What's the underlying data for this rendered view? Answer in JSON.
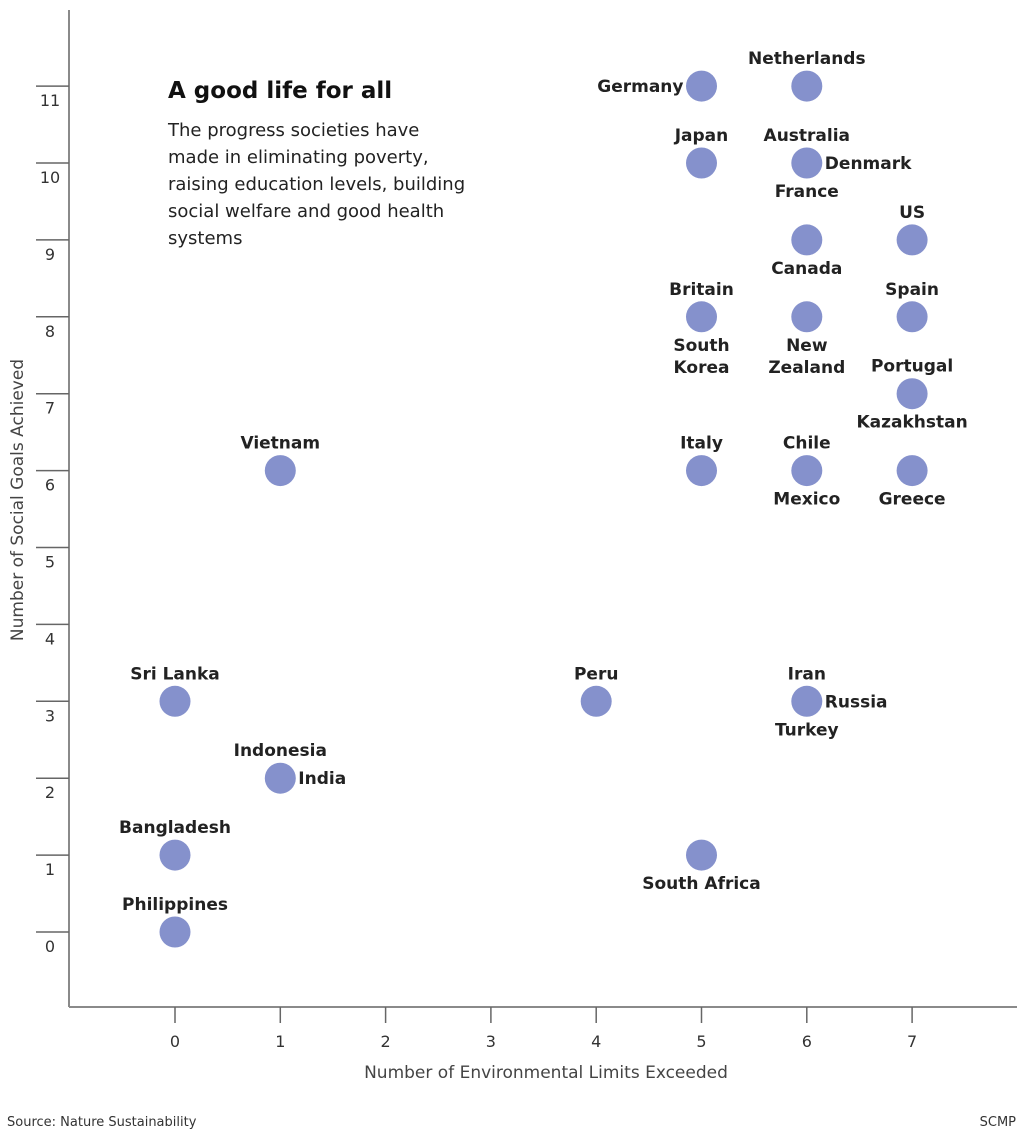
{
  "chart_data": {
    "type": "scatter",
    "title": "A good life for all",
    "subtitle": "The progress societies have made in eliminating poverty, raising education levels, building social welfare and good health systems",
    "xlabel": "Number of Environmental Limits Exceeded",
    "ylabel": "Number of Social Goals Achieved",
    "xlim": [
      -1,
      7.8
    ],
    "ylim": [
      -1,
      12
    ],
    "xticks": [
      0,
      1,
      2,
      3,
      4,
      5,
      6,
      7
    ],
    "yticks": [
      0,
      1,
      2,
      3,
      4,
      5,
      6,
      7,
      8,
      9,
      10,
      11
    ],
    "grid": false,
    "marker_color": "#8591cc",
    "points": [
      {
        "label": "Germany",
        "x": 5,
        "y": 11
      },
      {
        "label": "Netherlands",
        "x": 6,
        "y": 11
      },
      {
        "label": "Japan",
        "x": 5,
        "y": 10
      },
      {
        "label": "Australia",
        "x": 6,
        "y": 10
      },
      {
        "label": "Denmark",
        "x": 6,
        "y": 10
      },
      {
        "label": "France",
        "x": 6,
        "y": 10
      },
      {
        "label": "Canada",
        "x": 6,
        "y": 9
      },
      {
        "label": "US",
        "x": 7,
        "y": 9
      },
      {
        "label": "Britain",
        "x": 5,
        "y": 8
      },
      {
        "label": "South Korea",
        "x": 5,
        "y": 8
      },
      {
        "label": "New Zealand",
        "x": 6,
        "y": 8
      },
      {
        "label": "Spain",
        "x": 7,
        "y": 8
      },
      {
        "label": "Portugal",
        "x": 7,
        "y": 7
      },
      {
        "label": "Kazakhstan",
        "x": 7,
        "y": 7
      },
      {
        "label": "Vietnam",
        "x": 1,
        "y": 6
      },
      {
        "label": "Italy",
        "x": 5,
        "y": 6
      },
      {
        "label": "Chile",
        "x": 6,
        "y": 6
      },
      {
        "label": "Mexico",
        "x": 6,
        "y": 6
      },
      {
        "label": "Greece",
        "x": 7,
        "y": 6
      },
      {
        "label": "Sri Lanka",
        "x": 0,
        "y": 3
      },
      {
        "label": "Peru",
        "x": 4,
        "y": 3
      },
      {
        "label": "Iran",
        "x": 6,
        "y": 3
      },
      {
        "label": "Russia",
        "x": 6,
        "y": 3
      },
      {
        "label": "Turkey",
        "x": 6,
        "y": 3
      },
      {
        "label": "Indonesia",
        "x": 1,
        "y": 2
      },
      {
        "label": "India",
        "x": 1,
        "y": 2
      },
      {
        "label": "Bangladesh",
        "x": 0,
        "y": 1
      },
      {
        "label": "South Africa",
        "x": 5,
        "y": 1
      },
      {
        "label": "Philippines",
        "x": 0,
        "y": 0
      }
    ]
  },
  "footer": {
    "source": "Source: Nature Sustainability",
    "credit": "SCMP"
  }
}
